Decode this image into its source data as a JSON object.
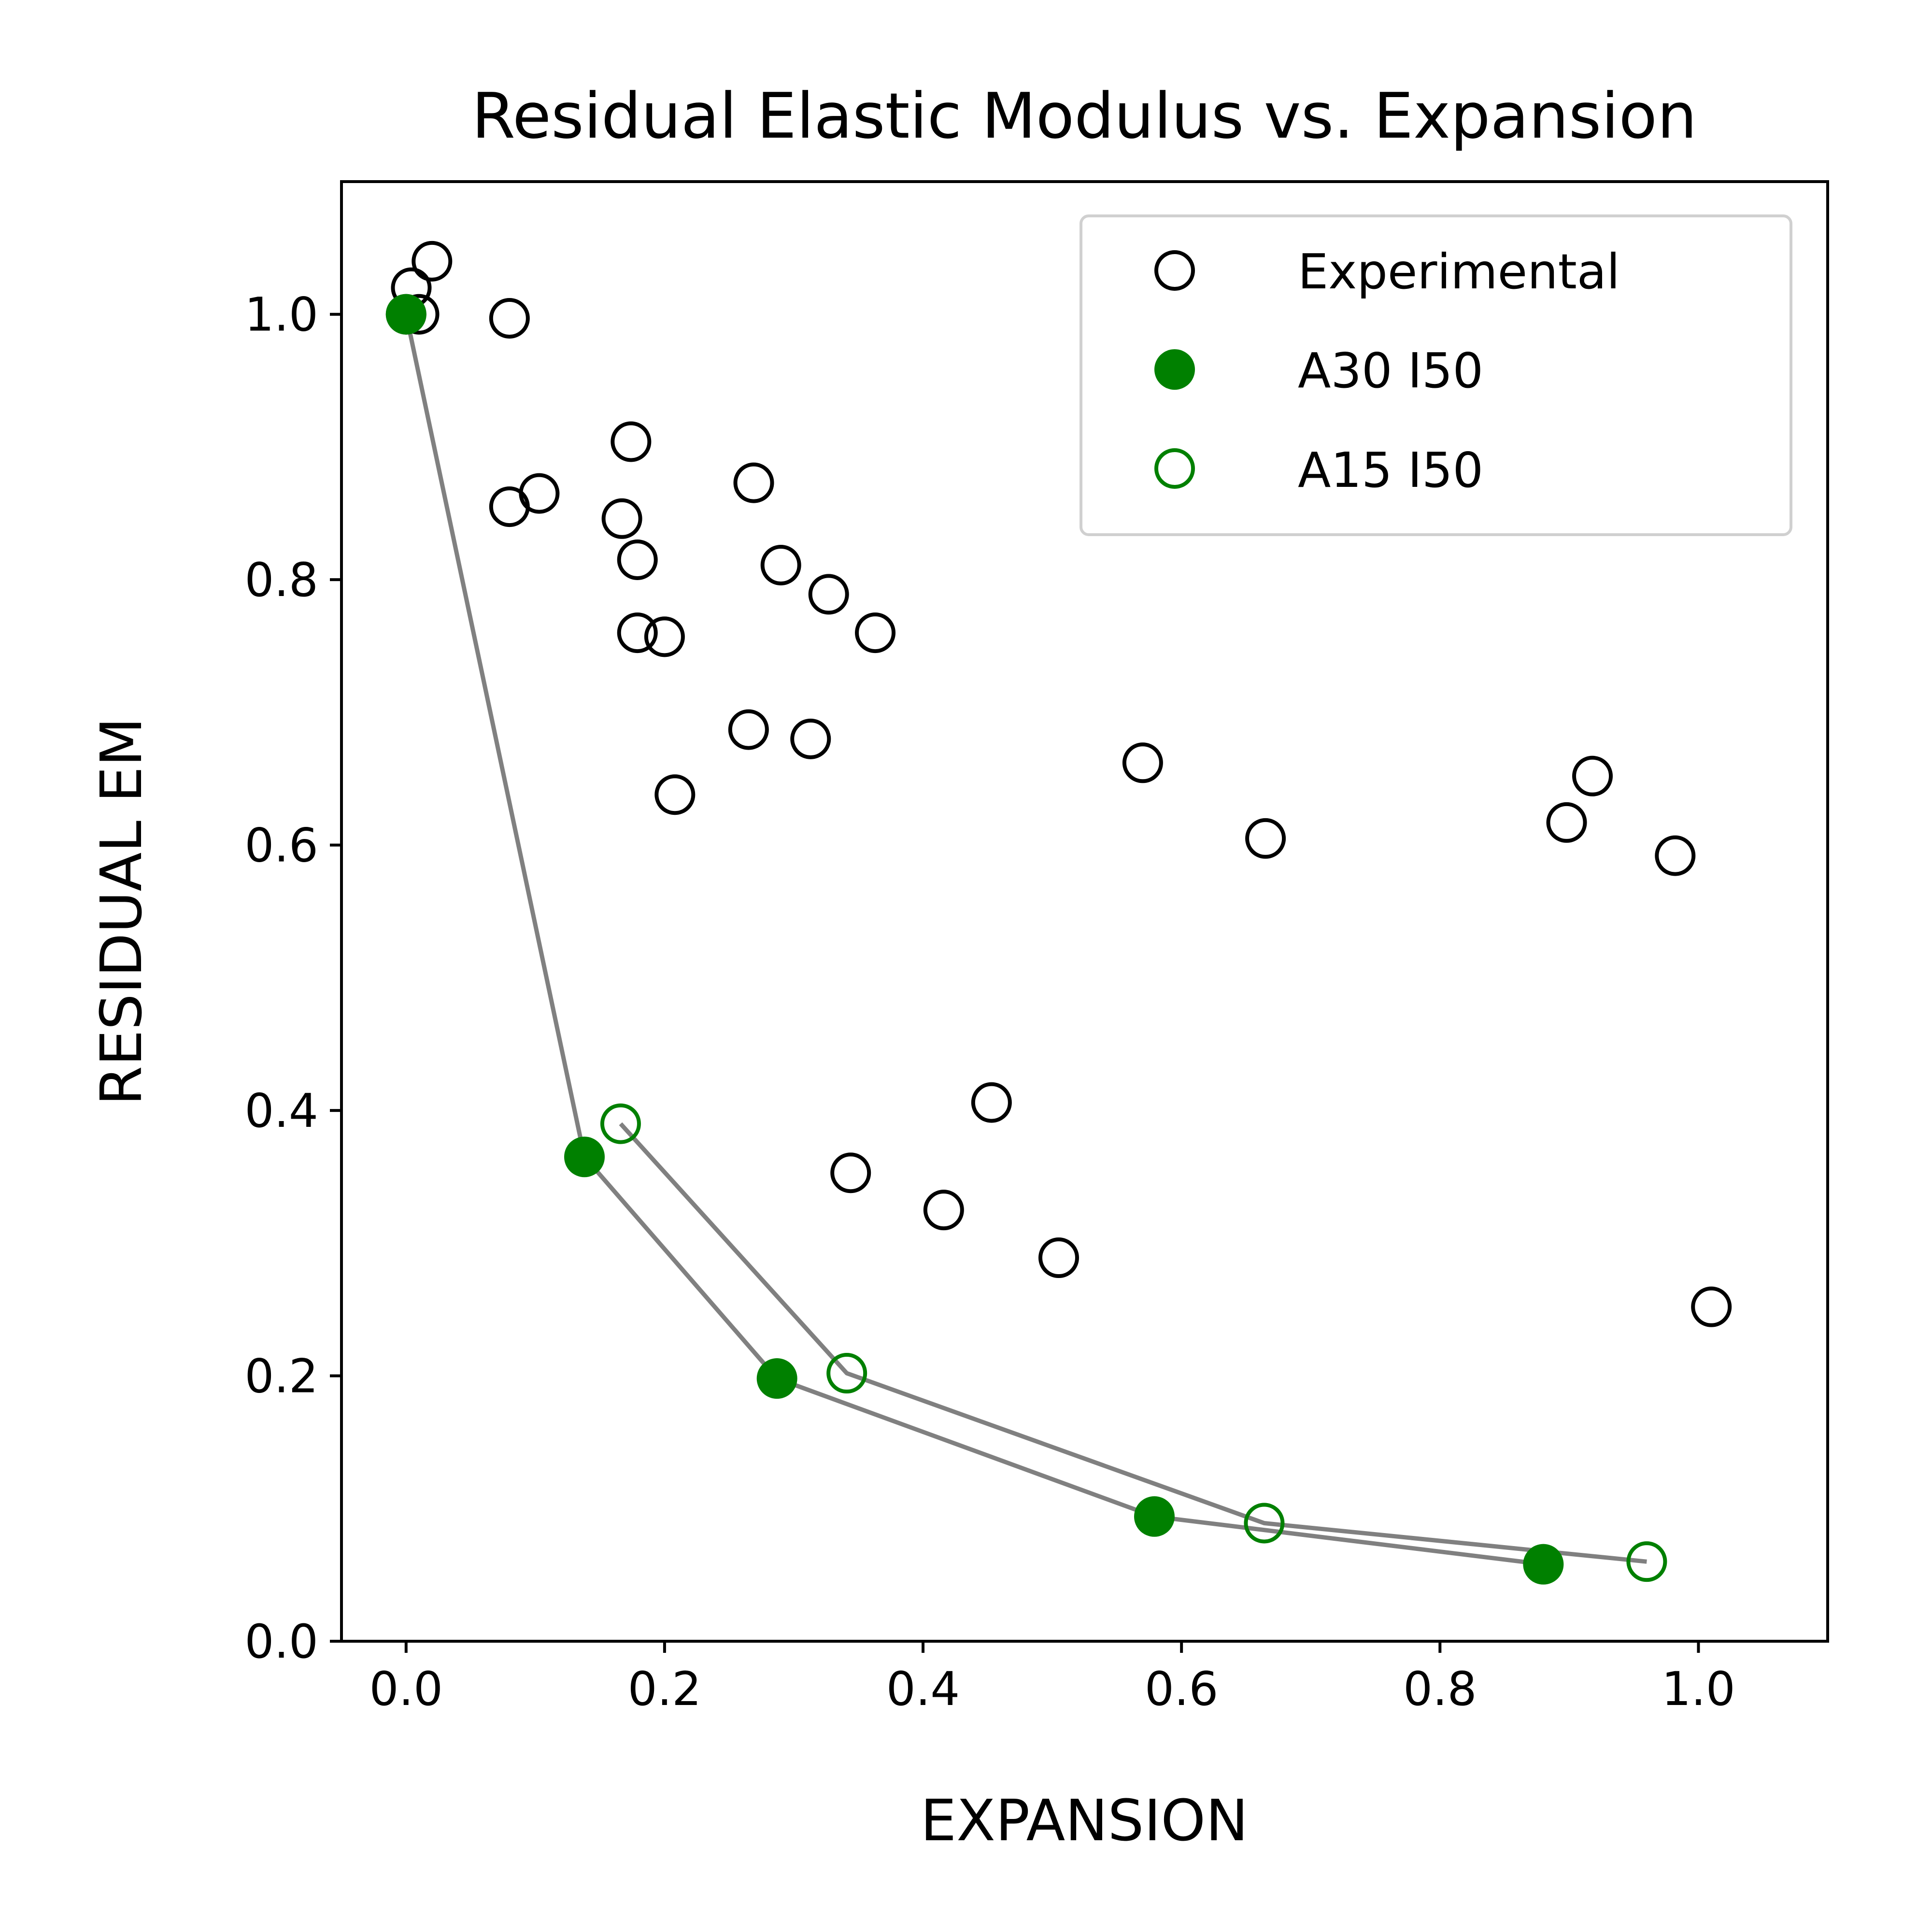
{
  "chart_data": {
    "type": "scatter",
    "title": "Residual Elastic Modulus vs. Expansion",
    "xlabel": "EXPANSION",
    "ylabel": "RESIDUAL EM",
    "xlim": [
      -0.05,
      1.1
    ],
    "ylim": [
      0.0,
      1.1
    ],
    "xticks": [
      0.0,
      0.2,
      0.4,
      0.6,
      0.8,
      1.0
    ],
    "xtick_labels": [
      "0.0",
      "0.2",
      "0.4",
      "0.6",
      "0.8",
      "1.0"
    ],
    "yticks": [
      0.0,
      0.2,
      0.4,
      0.6,
      0.8,
      1.0
    ],
    "ytick_labels": [
      "0.0",
      "0.2",
      "0.4",
      "0.6",
      "0.8",
      "1.0"
    ],
    "grid": false,
    "legend_position": "top-right",
    "line_color": "#808080",
    "series": [
      {
        "name": "Experimental",
        "marker": "open-circle",
        "color": "#000000",
        "connected": false,
        "points": [
          {
            "x": 0.0,
            "y": 1.0
          },
          {
            "x": 0.004,
            "y": 1.02
          },
          {
            "x": 0.01,
            "y": 1.0
          },
          {
            "x": 0.02,
            "y": 1.04
          },
          {
            "x": 0.08,
            "y": 0.997
          },
          {
            "x": 0.08,
            "y": 0.855
          },
          {
            "x": 0.103,
            "y": 0.865
          },
          {
            "x": 0.167,
            "y": 0.846
          },
          {
            "x": 0.174,
            "y": 0.904
          },
          {
            "x": 0.179,
            "y": 0.815
          },
          {
            "x": 0.179,
            "y": 0.76
          },
          {
            "x": 0.2,
            "y": 0.757
          },
          {
            "x": 0.208,
            "y": 0.638
          },
          {
            "x": 0.265,
            "y": 0.687
          },
          {
            "x": 0.269,
            "y": 0.873
          },
          {
            "x": 0.29,
            "y": 0.811
          },
          {
            "x": 0.313,
            "y": 0.68
          },
          {
            "x": 0.327,
            "y": 0.789
          },
          {
            "x": 0.363,
            "y": 0.76
          },
          {
            "x": 0.344,
            "y": 0.353
          },
          {
            "x": 0.416,
            "y": 0.325
          },
          {
            "x": 0.453,
            "y": 0.406
          },
          {
            "x": 0.505,
            "y": 0.289
          },
          {
            "x": 0.57,
            "y": 0.662
          },
          {
            "x": 0.665,
            "y": 0.605
          },
          {
            "x": 0.898,
            "y": 0.617
          },
          {
            "x": 0.918,
            "y": 0.652
          },
          {
            "x": 0.982,
            "y": 0.592
          },
          {
            "x": 1.01,
            "y": 0.252
          }
        ]
      },
      {
        "name": "A30 I50",
        "marker": "filled-circle",
        "color": "#008000",
        "connected": true,
        "points": [
          {
            "x": 0.0,
            "y": 1.0
          },
          {
            "x": 0.138,
            "y": 0.365
          },
          {
            "x": 0.287,
            "y": 0.198
          },
          {
            "x": 0.579,
            "y": 0.094
          },
          {
            "x": 0.88,
            "y": 0.058
          }
        ]
      },
      {
        "name": "A15 I50",
        "marker": "open-circle",
        "color": "#008000",
        "connected": true,
        "points": [
          {
            "x": 0.166,
            "y": 0.39
          },
          {
            "x": 0.341,
            "y": 0.202
          },
          {
            "x": 0.664,
            "y": 0.089
          },
          {
            "x": 0.96,
            "y": 0.06
          }
        ]
      }
    ]
  }
}
